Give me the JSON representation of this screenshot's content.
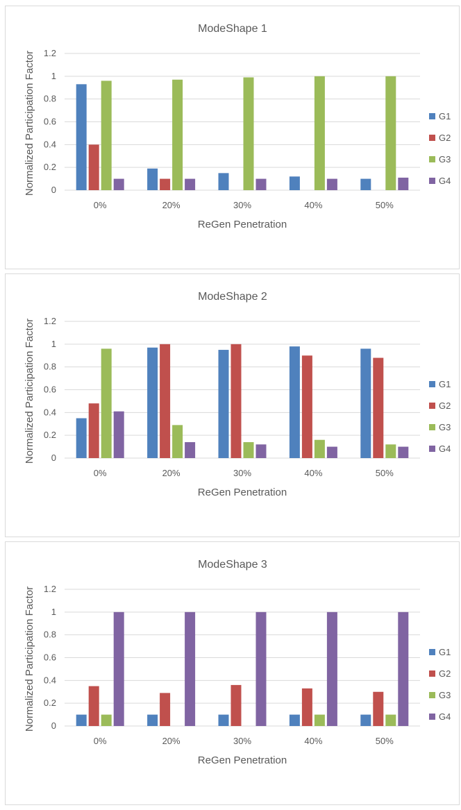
{
  "colors": {
    "G1": "#4f81bd",
    "G2": "#c0504d",
    "G3": "#9bbb59",
    "G4": "#8064a2",
    "grid": "#d9d9d9"
  },
  "chart_data": [
    {
      "type": "bar",
      "title": "ModeShape 1",
      "xlabel": "ReGen Penetration",
      "ylabel": "Normalized Participation Factor",
      "ylim": [
        0,
        1.2
      ],
      "yticks": [
        "0",
        "0.2",
        "0.4",
        "0.6",
        "0.8",
        "1",
        "1.2"
      ],
      "grid": true,
      "legend_position": "right",
      "categories": [
        "0%",
        "20%",
        "30%",
        "40%",
        "50%"
      ],
      "series": [
        {
          "name": "G1",
          "values": [
            0.93,
            0.19,
            0.15,
            0.12,
            0.1
          ]
        },
        {
          "name": "G2",
          "values": [
            0.4,
            0.1,
            0,
            0,
            0
          ]
        },
        {
          "name": "G3",
          "values": [
            0.96,
            0.97,
            0.99,
            1.0,
            1.0
          ]
        },
        {
          "name": "G4",
          "values": [
            0.1,
            0.1,
            0.1,
            0.1,
            0.11
          ]
        }
      ]
    },
    {
      "type": "bar",
      "title": "ModeShape 2",
      "xlabel": "ReGen Penetration",
      "ylabel": "Normalized Participation Factor",
      "ylim": [
        0,
        1.2
      ],
      "yticks": [
        "0",
        "0.2",
        "0.4",
        "0.6",
        "0.8",
        "1",
        "1.2"
      ],
      "grid": true,
      "legend_position": "right",
      "categories": [
        "0%",
        "20%",
        "30%",
        "40%",
        "50%"
      ],
      "series": [
        {
          "name": "G1",
          "values": [
            0.35,
            0.97,
            0.95,
            0.98,
            0.96
          ]
        },
        {
          "name": "G2",
          "values": [
            0.48,
            1.0,
            1.0,
            0.9,
            0.88
          ]
        },
        {
          "name": "G3",
          "values": [
            0.96,
            0.29,
            0.14,
            0.16,
            0.12
          ]
        },
        {
          "name": "G4",
          "values": [
            0.41,
            0.14,
            0.12,
            0.1,
            0.1
          ]
        }
      ]
    },
    {
      "type": "bar",
      "title": "ModeShape 3",
      "xlabel": "ReGen Penetration",
      "ylabel": "Normalized Participation Factor",
      "ylim": [
        0,
        1.2
      ],
      "yticks": [
        "0",
        "0.2",
        "0.4",
        "0.6",
        "0.8",
        "1",
        "1.2"
      ],
      "grid": true,
      "legend_position": "right",
      "categories": [
        "0%",
        "20%",
        "30%",
        "40%",
        "50%"
      ],
      "series": [
        {
          "name": "G1",
          "values": [
            0.1,
            0.1,
            0.1,
            0.1,
            0.1
          ]
        },
        {
          "name": "G2",
          "values": [
            0.35,
            0.29,
            0.36,
            0.33,
            0.3
          ]
        },
        {
          "name": "G3",
          "values": [
            0.1,
            0,
            0,
            0.1,
            0.1
          ]
        },
        {
          "name": "G4",
          "values": [
            1.0,
            1.0,
            1.0,
            1.0,
            1.0
          ]
        }
      ]
    }
  ]
}
